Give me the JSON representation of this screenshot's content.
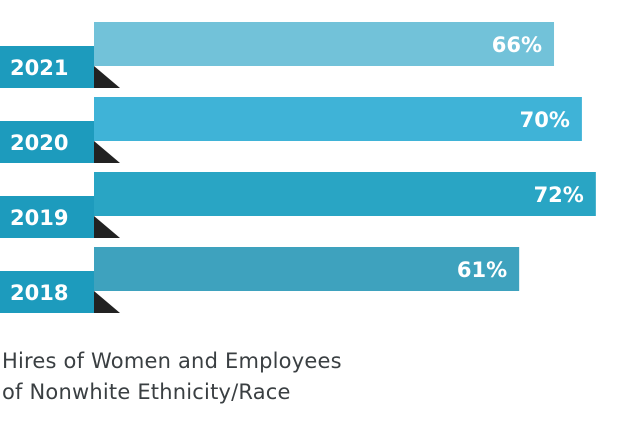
{
  "chart_data": {
    "type": "bar",
    "orientation": "horizontal",
    "categories": [
      "2021",
      "2020",
      "2019",
      "2018"
    ],
    "values": [
      66,
      70,
      72,
      61
    ],
    "value_labels": [
      "66%",
      "70%",
      "72%",
      "61%"
    ],
    "bar_colors": [
      "#72c2d9",
      "#3fb3d7",
      "#29a5c4",
      "#3ea2be"
    ],
    "tag_color": "#1d9bbd",
    "fold_color": "#222222",
    "title": "",
    "xlabel": "",
    "ylabel": "",
    "grid": false,
    "legend": "none"
  },
  "caption": {
    "line1": "Hires of Women and Employees",
    "line2": "of Nonwhite Ethnicity/Race"
  }
}
